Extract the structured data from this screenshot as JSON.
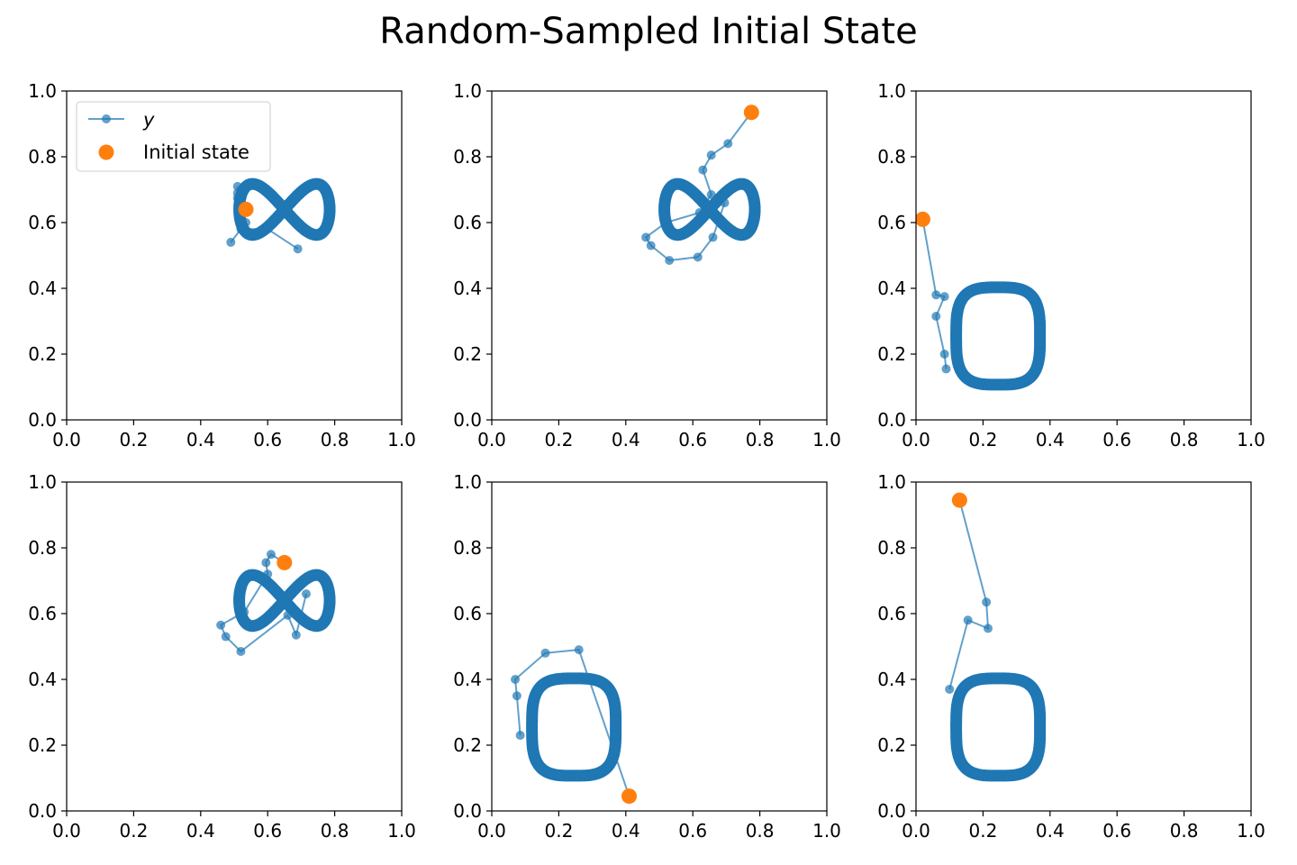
{
  "title": "Random-Sampled Initial State",
  "colors": {
    "trajectory": "#1f77b4",
    "initial": "#ff7f0e"
  },
  "legend": {
    "placement": "upper-left",
    "panel": 0,
    "entries": [
      "y",
      "Initial state"
    ]
  },
  "chart_data": [
    {
      "type": "line",
      "xlim": [
        0,
        1
      ],
      "ylim": [
        0,
        1
      ],
      "xticks": [
        "0.0",
        "0.2",
        "0.4",
        "0.6",
        "0.8",
        "1.0"
      ],
      "yticks": [
        "0.0",
        "0.2",
        "0.4",
        "0.6",
        "0.8",
        "1.0"
      ],
      "attractor": {
        "shape": "figure-eight",
        "center": [
          0.65,
          0.64
        ],
        "lobe_x": 0.135,
        "lobe_y": 0.155
      },
      "initial_state": [
        0.535,
        0.64
      ],
      "transient": [
        [
          0.535,
          0.64
        ],
        [
          0.51,
          0.675
        ],
        [
          0.51,
          0.69
        ],
        [
          0.51,
          0.71
        ],
        [
          0.535,
          0.6
        ],
        [
          0.49,
          0.54
        ],
        [
          0.52,
          0.58
        ],
        [
          0.6,
          0.58
        ],
        [
          0.69,
          0.52
        ]
      ]
    },
    {
      "type": "line",
      "xlim": [
        0,
        1
      ],
      "ylim": [
        0,
        1
      ],
      "xticks": [
        "0.0",
        "0.2",
        "0.4",
        "0.6",
        "0.8",
        "1.0"
      ],
      "yticks": [
        "0.0",
        "0.2",
        "0.4",
        "0.6",
        "0.8",
        "1.0"
      ],
      "attractor": {
        "shape": "figure-eight",
        "center": [
          0.65,
          0.64
        ],
        "lobe_x": 0.135,
        "lobe_y": 0.155
      },
      "initial_state": [
        0.775,
        0.935
      ],
      "transient": [
        [
          0.775,
          0.935
        ],
        [
          0.705,
          0.84
        ],
        [
          0.655,
          0.805
        ],
        [
          0.63,
          0.76
        ],
        [
          0.655,
          0.685
        ],
        [
          0.62,
          0.63
        ],
        [
          0.52,
          0.6
        ],
        [
          0.46,
          0.555
        ],
        [
          0.475,
          0.53
        ],
        [
          0.53,
          0.485
        ],
        [
          0.615,
          0.495
        ],
        [
          0.66,
          0.555
        ],
        [
          0.695,
          0.66
        ]
      ]
    },
    {
      "type": "line",
      "xlim": [
        0,
        1
      ],
      "ylim": [
        0,
        1
      ],
      "xticks": [
        "0.0",
        "0.2",
        "0.4",
        "0.6",
        "0.8",
        "1.0"
      ],
      "yticks": [
        "0.0",
        "0.2",
        "0.4",
        "0.6",
        "0.8",
        "1.0"
      ],
      "attractor": {
        "shape": "loop",
        "center": [
          0.245,
          0.255
        ],
        "radius_x": 0.125,
        "radius_y": 0.148
      },
      "initial_state": [
        0.02,
        0.61
      ],
      "transient": [
        [
          0.02,
          0.61
        ],
        [
          0.06,
          0.38
        ],
        [
          0.085,
          0.375
        ],
        [
          0.06,
          0.315
        ],
        [
          0.085,
          0.2
        ],
        [
          0.09,
          0.155
        ]
      ]
    },
    {
      "type": "line",
      "xlim": [
        0,
        1
      ],
      "ylim": [
        0,
        1
      ],
      "xticks": [
        "0.0",
        "0.2",
        "0.4",
        "0.6",
        "0.8",
        "1.0"
      ],
      "yticks": [
        "0.0",
        "0.2",
        "0.4",
        "0.6",
        "0.8",
        "1.0"
      ],
      "attractor": {
        "shape": "figure-eight",
        "center": [
          0.65,
          0.64
        ],
        "lobe_x": 0.135,
        "lobe_y": 0.155
      },
      "initial_state": [
        0.65,
        0.755
      ],
      "transient": [
        [
          0.65,
          0.755
        ],
        [
          0.61,
          0.78
        ],
        [
          0.595,
          0.755
        ],
        [
          0.6,
          0.72
        ],
        [
          0.53,
          0.605
        ],
        [
          0.46,
          0.565
        ],
        [
          0.475,
          0.53
        ],
        [
          0.52,
          0.485
        ],
        [
          0.66,
          0.595
        ],
        [
          0.685,
          0.535
        ],
        [
          0.715,
          0.66
        ]
      ]
    },
    {
      "type": "line",
      "xlim": [
        0,
        1
      ],
      "ylim": [
        0,
        1
      ],
      "xticks": [
        "0.0",
        "0.2",
        "0.4",
        "0.6",
        "0.8",
        "1.0"
      ],
      "yticks": [
        "0.0",
        "0.2",
        "0.4",
        "0.6",
        "0.8",
        "1.0"
      ],
      "attractor": {
        "shape": "loop",
        "center": [
          0.245,
          0.255
        ],
        "radius_x": 0.125,
        "radius_y": 0.148
      },
      "initial_state": [
        0.41,
        0.045
      ],
      "transient": [
        [
          0.41,
          0.045
        ],
        [
          0.26,
          0.49
        ],
        [
          0.16,
          0.48
        ],
        [
          0.07,
          0.4
        ],
        [
          0.075,
          0.35
        ],
        [
          0.085,
          0.23
        ]
      ]
    },
    {
      "type": "line",
      "xlim": [
        0,
        1
      ],
      "ylim": [
        0,
        1
      ],
      "xticks": [
        "0.0",
        "0.2",
        "0.4",
        "0.6",
        "0.8",
        "1.0"
      ],
      "yticks": [
        "0.0",
        "0.2",
        "0.4",
        "0.6",
        "0.8",
        "1.0"
      ],
      "attractor": {
        "shape": "loop",
        "center": [
          0.245,
          0.255
        ],
        "radius_x": 0.125,
        "radius_y": 0.148
      },
      "initial_state": [
        0.13,
        0.945
      ],
      "transient": [
        [
          0.13,
          0.945
        ],
        [
          0.21,
          0.635
        ],
        [
          0.215,
          0.555
        ],
        [
          0.155,
          0.58
        ],
        [
          0.1,
          0.37
        ]
      ]
    }
  ]
}
